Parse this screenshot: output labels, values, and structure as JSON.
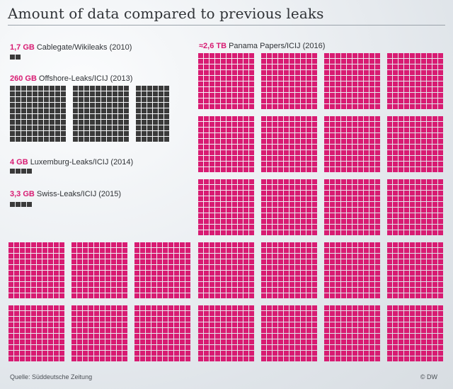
{
  "title": "Amount of data compared to previous leaks",
  "source": "Quelle: Süddeutsche Zeitung",
  "brand": "© DW",
  "colors": {
    "small_leaks": "#3a3a3a",
    "panama": "#d81b72",
    "accent_text": "#d81b72"
  },
  "chart_data": {
    "type": "waffle",
    "unit_note": "",
    "series": [
      {
        "name": "Cablegate/Wikileaks (2010)",
        "size_label": "1,7 GB",
        "gb": 1.7,
        "blocks": 0,
        "squares": 2,
        "color": "#3a3a3a"
      },
      {
        "name": "Offshore-Leaks/ICIJ (2013)",
        "size_label": "260 GB",
        "gb": 260,
        "blocks": 2,
        "squares": 260,
        "color": "#3a3a3a"
      },
      {
        "name": "Luxemburg-Leaks/ICIJ (2014)",
        "size_label": "4 GB",
        "gb": 4,
        "blocks": 0,
        "squares": 4,
        "color": "#3a3a3a"
      },
      {
        "name": "Swiss-Leaks/ICIJ (2015)",
        "size_label": "3,3 GB",
        "gb": 3.3,
        "blocks": 0,
        "squares": 4,
        "color": "#3a3a3a"
      },
      {
        "name": "Panama Papers/ICIJ (2016)",
        "size_label": "≈2,6 TB",
        "gb": 2600,
        "blocks": 26,
        "squares": 2600,
        "color": "#d81b72"
      }
    ]
  }
}
